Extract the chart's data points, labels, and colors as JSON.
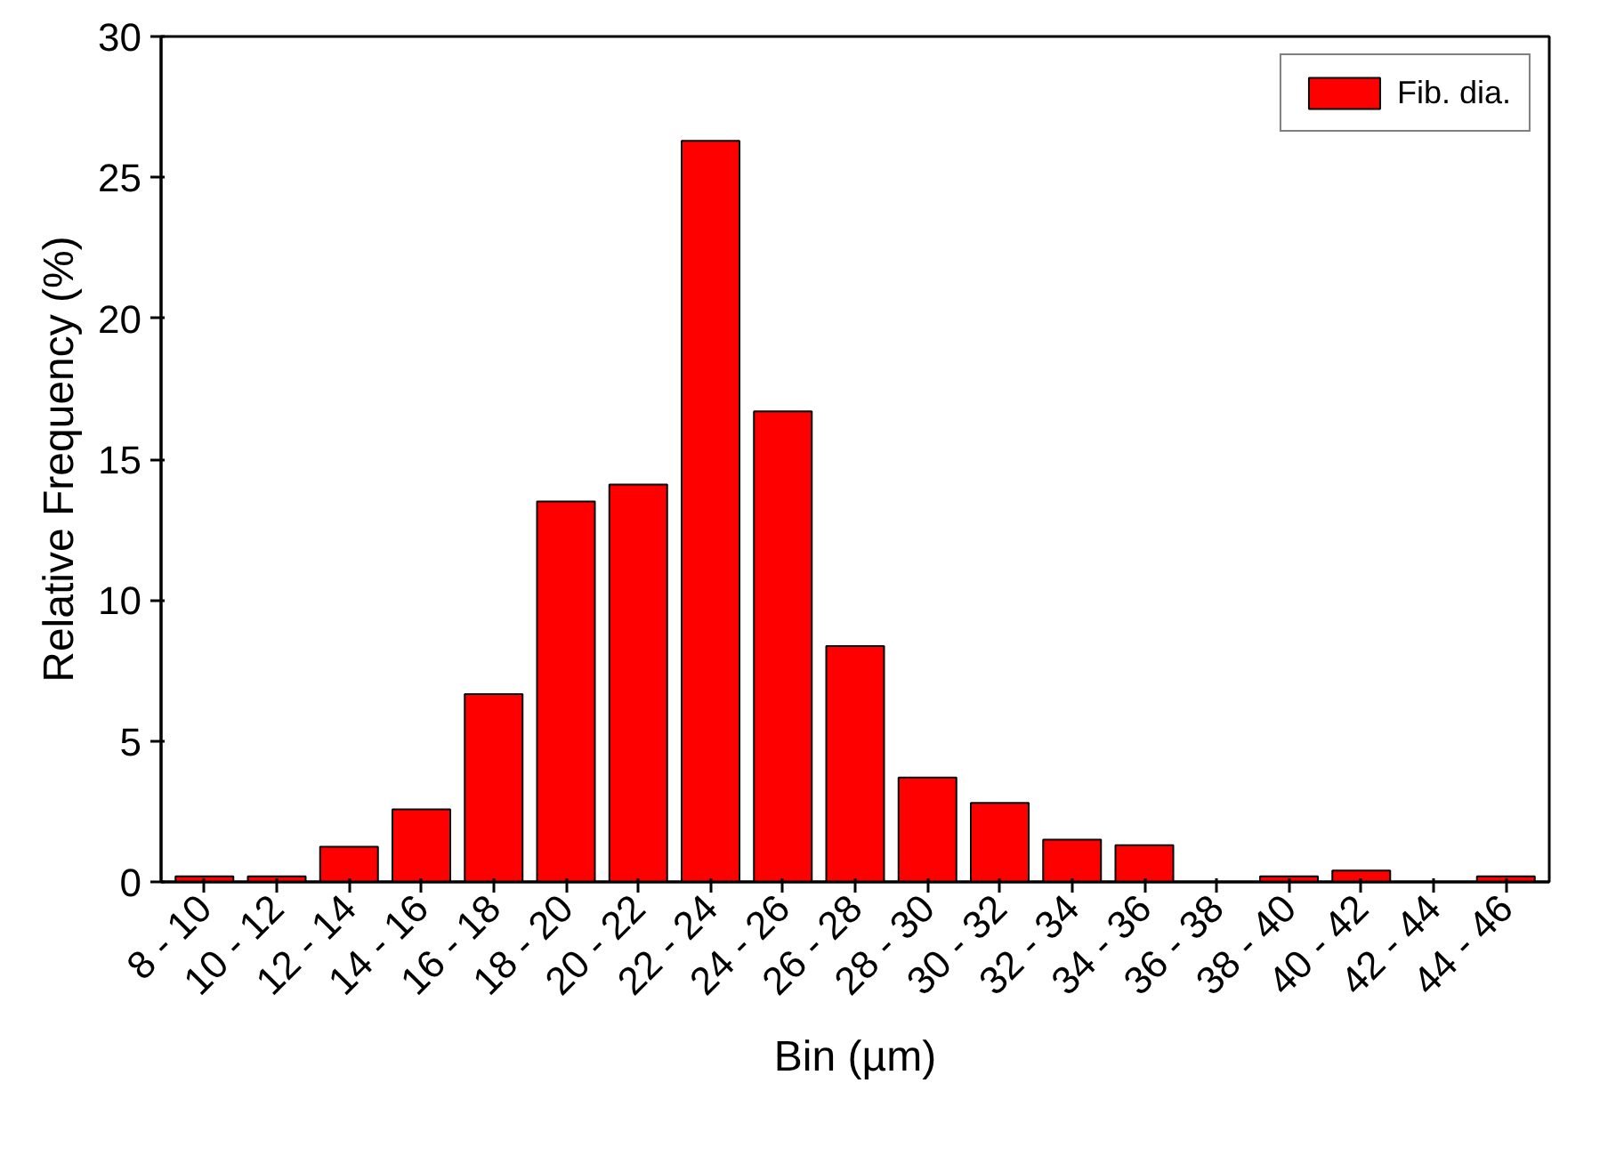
{
  "chart_data": {
    "type": "bar",
    "xlabel": "Bin (µm)",
    "ylabel": "Relative Frequency (%)",
    "categories": [
      "8 - 10",
      "10 - 12",
      "12 - 14",
      "14 - 16",
      "16 - 18",
      "18 - 20",
      "20 - 22",
      "22 - 24",
      "24 - 26",
      "26 - 28",
      "28 - 30",
      "30 - 32",
      "32 - 34",
      "34 - 36",
      "36 - 38",
      "38 - 40",
      "40 - 42",
      "42 - 44",
      "44 - 46"
    ],
    "series": [
      {
        "name": "Fib. dia.",
        "color": "#ff0000",
        "values": [
          0.2,
          0.2,
          1.25,
          2.57,
          6.66,
          13.5,
          14.1,
          26.3,
          16.7,
          8.37,
          3.7,
          2.8,
          1.5,
          1.3,
          0,
          0.2,
          0.4,
          0,
          0.2
        ]
      }
    ],
    "ylim": [
      0,
      30
    ],
    "yticks": [
      0,
      5,
      10,
      15,
      20,
      25,
      30
    ],
    "legend": "top right",
    "grid": false
  }
}
